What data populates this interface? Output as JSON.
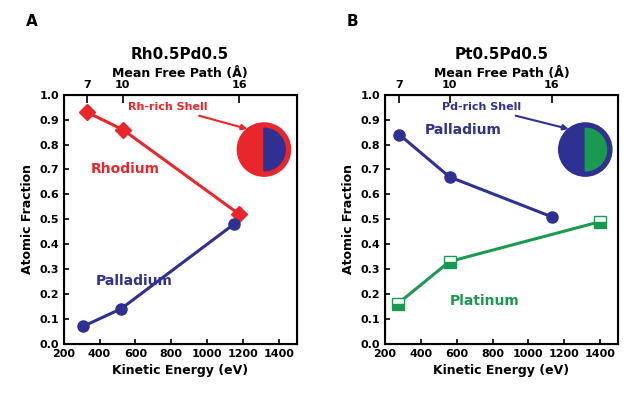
{
  "chart_data": [
    {
      "type": "line",
      "title": "Rh0.5Pd0.5",
      "panel_label": "A",
      "annotation": "Rh-rich Shell",
      "x_label": "Kinetic Energy (eV)",
      "y_label": "Atomic Fraction",
      "x2_label": "Mean Free Path (Å)",
      "xlim": [
        200,
        1500
      ],
      "xticks": [
        200,
        400,
        600,
        800,
        1000,
        1200,
        1400
      ],
      "x2ticks": [
        {
          "value": 330,
          "label": "7"
        },
        {
          "value": 530,
          "label": "10"
        },
        {
          "value": 1180,
          "label": "16"
        }
      ],
      "ylim": [
        0,
        1
      ],
      "yticks": [
        {
          "value": 0,
          "label": "0.0"
        },
        0.1,
        0.2,
        0.3,
        0.4,
        0.5,
        0.6,
        0.7,
        0.8,
        0.9,
        {
          "value": 1,
          "label": "1.0"
        }
      ],
      "series": [
        {
          "name": "Rhodium",
          "color": "#e8262b",
          "marker": "diamond",
          "x": [
            330,
            530,
            1180
          ],
          "values": [
            0.93,
            0.86,
            0.52
          ]
        },
        {
          "name": "Palladium",
          "color": "#2e3192",
          "marker": "circle",
          "x": [
            310,
            520,
            1150
          ],
          "values": [
            0.07,
            0.14,
            0.48
          ]
        }
      ]
    },
    {
      "type": "line",
      "title": "Pt0.5Pd0.5",
      "panel_label": "B",
      "annotation": "Pd-rich Shell",
      "x_label": "Kinetic Energy (eV)",
      "y_label": "Atomic Fraction",
      "x2_label": "Mean Free Path (Å)",
      "xlim": [
        200,
        1500
      ],
      "xticks": [
        200,
        400,
        600,
        800,
        1000,
        1200,
        1400
      ],
      "x2ticks": [
        {
          "value": 280,
          "label": "7"
        },
        {
          "value": 560,
          "label": "10"
        },
        {
          "value": 1130,
          "label": "16"
        }
      ],
      "ylim": [
        0,
        1
      ],
      "yticks": [
        {
          "value": 0,
          "label": "0.0"
        },
        0.1,
        0.2,
        0.3,
        0.4,
        0.5,
        0.6,
        0.7,
        0.8,
        0.9,
        {
          "value": 1,
          "label": "1.0"
        }
      ],
      "series": [
        {
          "name": "Palladium",
          "color": "#2e3192",
          "marker": "circle",
          "x": [
            280,
            560,
            1130
          ],
          "values": [
            0.84,
            0.67,
            0.51
          ]
        },
        {
          "name": "Platinum",
          "color": "#1a9a50",
          "marker": "half_square",
          "x": [
            270,
            560,
            1400
          ],
          "values": [
            0.16,
            0.33,
            0.49
          ]
        }
      ]
    }
  ]
}
